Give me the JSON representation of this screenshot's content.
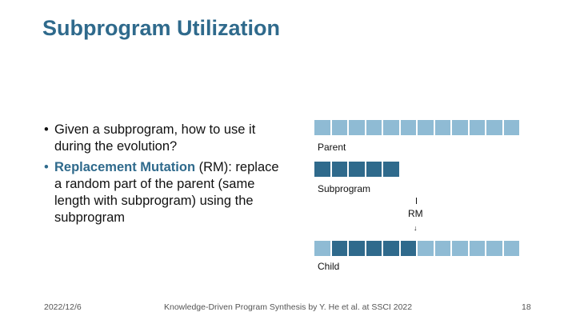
{
  "slide": {
    "title": "Subprogram Utilization",
    "bullets": [
      {
        "text": "Given a subprogram, how to use it during the evolution?"
      },
      {
        "highlight": "Replacement Mutation",
        "text": " (RM): replace a random part of the parent (same length with subprogram) using the subprogram"
      }
    ]
  },
  "diagram": {
    "parent_label": "Parent",
    "subprogram_label": "Subprogram",
    "operator_label": "RM",
    "child_label": "Child",
    "parent_cells": [
      "light",
      "light",
      "light",
      "light",
      "light",
      "light",
      "light",
      "light",
      "light",
      "light",
      "light",
      "light"
    ],
    "subprogram_cells": [
      "dark",
      "dark",
      "dark",
      "dark",
      "dark"
    ],
    "child_cells": [
      "light",
      "dark",
      "dark",
      "dark",
      "dark",
      "dark",
      "light",
      "light",
      "light",
      "light",
      "light",
      "light"
    ],
    "colors": {
      "light": "#8fbbd4",
      "dark": "#2f6a8c",
      "title": "#2f6a8c"
    }
  },
  "footer": {
    "date": "2022/12/6",
    "citation": "Knowledge-Driven Program Synthesis by Y. He et al. at SSCI 2022",
    "page": "18"
  }
}
